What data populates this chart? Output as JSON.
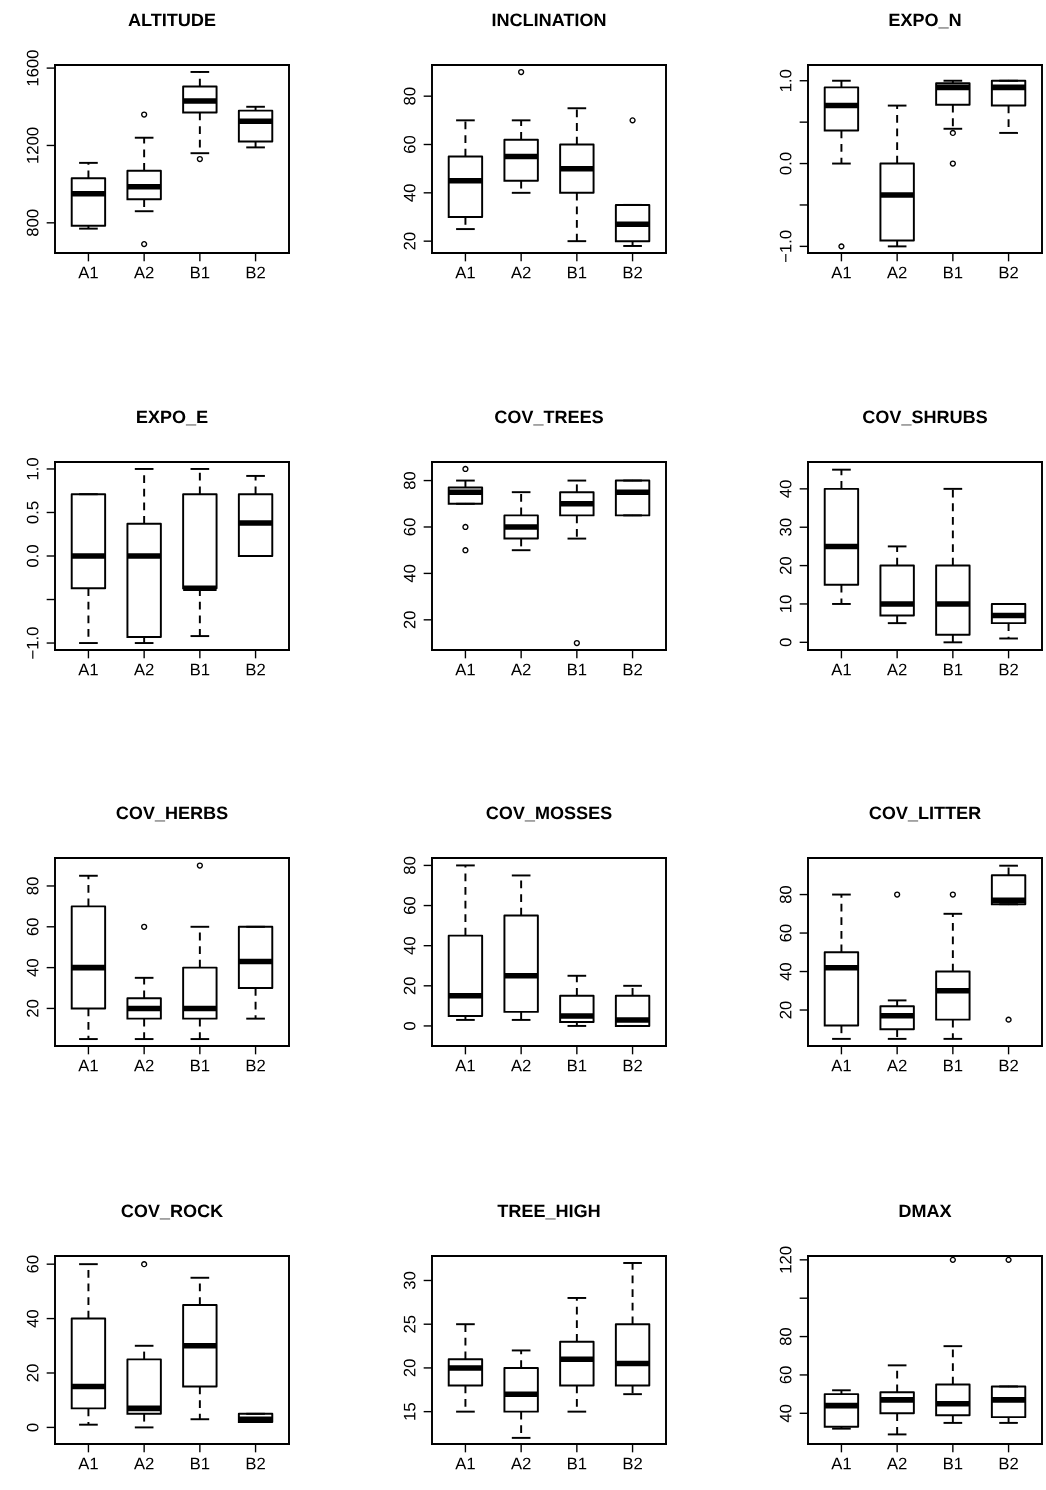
{
  "chart_data": [
    {
      "type": "box",
      "title": "ALTITUDE",
      "categories": [
        "A1",
        "A2",
        "B1",
        "B2"
      ],
      "ylim": [
        644,
        1616
      ],
      "yticks": [
        800,
        1200,
        1600
      ],
      "boxes": [
        {
          "low": 770,
          "q1": 785,
          "median": 950,
          "q3": 1030,
          "high": 1110
        },
        {
          "low": 860,
          "q1": 922,
          "median": 987,
          "q3": 1069,
          "high": 1240,
          "outliers": [
            1360,
            690
          ]
        },
        {
          "low": 1160,
          "q1": 1370,
          "median": 1430,
          "q3": 1505,
          "high": 1580,
          "outliers": [
            1130
          ]
        },
        {
          "low": 1190,
          "q1": 1220,
          "median": 1325,
          "q3": 1380,
          "high": 1400
        }
      ]
    },
    {
      "type": "box",
      "title": "INCLINATION",
      "categories": [
        "A1",
        "A2",
        "B1",
        "B2"
      ],
      "ylim": [
        15.1,
        92.9
      ],
      "yticks": [
        20,
        40,
        60,
        80
      ],
      "boxes": [
        {
          "low": 25,
          "q1": 30,
          "median": 45,
          "q3": 55,
          "high": 70
        },
        {
          "low": 40,
          "q1": 45,
          "median": 55,
          "q3": 62,
          "high": 70,
          "outliers": [
            90
          ]
        },
        {
          "low": 20,
          "q1": 40,
          "median": 50,
          "q3": 60,
          "high": 75
        },
        {
          "low": 18,
          "q1": 20,
          "median": 27,
          "q3": 35,
          "high": 35,
          "outliers": [
            70
          ]
        }
      ]
    },
    {
      "type": "box",
      "title": "EXPO_N",
      "categories": [
        "A1",
        "A2",
        "B1",
        "B2"
      ],
      "ylim": [
        -1.08,
        1.19
      ],
      "yticks": [
        {
          "value": -1.0,
          "label": "−1.0"
        },
        {
          "value": -0.5,
          "label": null
        },
        {
          "value": 0.0,
          "label": "0.0"
        },
        {
          "value": 0.5,
          "label": null
        },
        {
          "value": 1.0,
          "label": "1.0"
        }
      ],
      "boxes": [
        {
          "low": 0.0,
          "q1": 0.4,
          "median": 0.7,
          "q3": 0.92,
          "high": 1.0,
          "outliers": [
            -1.0
          ]
        },
        {
          "low": -1.0,
          "q1": -0.93,
          "median": -0.38,
          "q3": 0.0,
          "high": 0.7
        },
        {
          "low": 0.42,
          "q1": 0.71,
          "median": 0.92,
          "q3": 0.97,
          "high": 1.0,
          "outliers": [
            0.37,
            0.0
          ]
        },
        {
          "low": 0.37,
          "q1": 0.7,
          "median": 0.92,
          "q3": 1.0,
          "high": 1.0
        }
      ]
    },
    {
      "type": "box",
      "title": "EXPO_E",
      "categories": [
        "A1",
        "A2",
        "B1",
        "B2"
      ],
      "ylim": [
        -1.08,
        1.08
      ],
      "yticks": [
        {
          "value": -1.0,
          "label": "−1.0"
        },
        {
          "value": -0.5,
          "label": null
        },
        {
          "value": 0.0,
          "label": "0.0"
        },
        {
          "value": 0.5,
          "label": "0.5"
        },
        {
          "value": 1.0,
          "label": "1.0"
        }
      ],
      "boxes": [
        {
          "low": -1.0,
          "q1": -0.37,
          "median": 0.0,
          "q3": 0.71,
          "high": 0.71
        },
        {
          "low": -1.0,
          "q1": -0.93,
          "median": 0.0,
          "q3": 0.37,
          "high": 1.0
        },
        {
          "low": -0.92,
          "q1": -0.37,
          "median": -0.37,
          "q3": 0.71,
          "high": 1.0
        },
        {
          "low": 0.0,
          "q1": 0.0,
          "median": 0.38,
          "q3": 0.71,
          "high": 0.92
        }
      ]
    },
    {
      "type": "box",
      "title": "COV_TREES",
      "categories": [
        "A1",
        "A2",
        "B1",
        "B2"
      ],
      "ylim": [
        7,
        88
      ],
      "yticks": [
        20,
        40,
        60,
        80
      ],
      "boxes": [
        {
          "low": 70,
          "q1": 70,
          "median": 75,
          "q3": 77,
          "high": 80,
          "outliers": [
            85,
            60,
            50
          ]
        },
        {
          "low": 50,
          "q1": 55,
          "median": 60,
          "q3": 65,
          "high": 75
        },
        {
          "low": 55,
          "q1": 65,
          "median": 70,
          "q3": 75,
          "high": 80,
          "outliers": [
            10
          ]
        },
        {
          "low": 65,
          "q1": 65,
          "median": 75,
          "q3": 80,
          "high": 80
        }
      ]
    },
    {
      "type": "box",
      "title": "COV_SHRUBS",
      "categories": [
        "A1",
        "A2",
        "B1",
        "B2"
      ],
      "ylim": [
        -2,
        47
      ],
      "yticks": [
        0,
        10,
        20,
        30,
        40
      ],
      "boxes": [
        {
          "low": 10,
          "q1": 15,
          "median": 25,
          "q3": 40,
          "high": 45
        },
        {
          "low": 5,
          "q1": 7,
          "median": 10,
          "q3": 20,
          "high": 25
        },
        {
          "low": 0,
          "q1": 2,
          "median": 10,
          "q3": 20,
          "high": 40
        },
        {
          "low": 1,
          "q1": 5,
          "median": 7,
          "q3": 10,
          "high": 10
        }
      ]
    },
    {
      "type": "box",
      "title": "COV_HERBS",
      "categories": [
        "A1",
        "A2",
        "B1",
        "B2"
      ],
      "ylim": [
        1.6,
        93.7
      ],
      "yticks": [
        20,
        40,
        60,
        80
      ],
      "boxes": [
        {
          "low": 5,
          "q1": 20,
          "median": 40,
          "q3": 70,
          "high": 85
        },
        {
          "low": 5,
          "q1": 15,
          "median": 20,
          "q3": 25,
          "high": 35,
          "outliers": [
            60
          ]
        },
        {
          "low": 5,
          "q1": 15,
          "median": 20,
          "q3": 40,
          "high": 60,
          "outliers": [
            90
          ]
        },
        {
          "low": 15,
          "q1": 30,
          "median": 43,
          "q3": 60,
          "high": 60
        }
      ]
    },
    {
      "type": "box",
      "title": "COV_MOSSES",
      "categories": [
        "A1",
        "A2",
        "B1",
        "B2"
      ],
      "ylim": [
        -10,
        83.7
      ],
      "yticks": [
        0,
        20,
        40,
        60,
        80
      ],
      "boxes": [
        {
          "low": 3,
          "q1": 5,
          "median": 15,
          "q3": 45,
          "high": 80
        },
        {
          "low": 3,
          "q1": 7,
          "median": 25,
          "q3": 55,
          "high": 75
        },
        {
          "low": 0,
          "q1": 2,
          "median": 5,
          "q3": 15,
          "high": 25
        },
        {
          "low": 0,
          "q1": 0,
          "median": 3,
          "q3": 15,
          "high": 20
        }
      ]
    },
    {
      "type": "box",
      "title": "COV_LITTER",
      "categories": [
        "A1",
        "A2",
        "B1",
        "B2"
      ],
      "ylim": [
        1.3,
        99
      ],
      "yticks": [
        20,
        40,
        60,
        80
      ],
      "boxes": [
        {
          "low": 5,
          "q1": 12,
          "median": 42,
          "q3": 50,
          "high": 80
        },
        {
          "low": 5,
          "q1": 10,
          "median": 17,
          "q3": 22,
          "high": 25,
          "outliers": [
            80
          ]
        },
        {
          "low": 5,
          "q1": 15,
          "median": 30,
          "q3": 40,
          "high": 70,
          "outliers": [
            80
          ]
        },
        {
          "low": 75,
          "q1": 75,
          "median": 77,
          "q3": 90,
          "high": 95,
          "outliers": [
            15
          ]
        }
      ]
    },
    {
      "type": "box",
      "title": "COV_ROCK",
      "categories": [
        "A1",
        "A2",
        "B1",
        "B2"
      ],
      "ylim": [
        -6.1,
        63
      ],
      "yticks": [
        0,
        20,
        40,
        60
      ],
      "boxes": [
        {
          "low": 1,
          "q1": 7,
          "median": 15,
          "q3": 40,
          "high": 60
        },
        {
          "low": 0,
          "q1": 5,
          "median": 7,
          "q3": 25,
          "high": 30,
          "outliers": [
            60
          ]
        },
        {
          "low": 3,
          "q1": 15,
          "median": 30,
          "q3": 45,
          "high": 55
        },
        {
          "low": 2,
          "q1": 2,
          "median": 3,
          "q3": 5,
          "high": 5
        }
      ]
    },
    {
      "type": "box",
      "title": "TREE_HIGH",
      "categories": [
        "A1",
        "A2",
        "B1",
        "B2"
      ],
      "ylim": [
        11.3,
        32.8
      ],
      "yticks": [
        15,
        20,
        25,
        30
      ],
      "boxes": [
        {
          "low": 15,
          "q1": 18,
          "median": 20,
          "q3": 21,
          "high": 25
        },
        {
          "low": 12,
          "q1": 15,
          "median": 17,
          "q3": 20,
          "high": 22
        },
        {
          "low": 15,
          "q1": 18,
          "median": 21,
          "q3": 23,
          "high": 28
        },
        {
          "low": 17,
          "q1": 18,
          "median": 20.5,
          "q3": 25,
          "high": 32
        }
      ]
    },
    {
      "type": "box",
      "title": "DMAX",
      "categories": [
        "A1",
        "A2",
        "B1",
        "B2"
      ],
      "ylim": [
        24,
        122
      ],
      "yticks": [
        40,
        60,
        80,
        {
          "value": 100,
          "label": null
        },
        120
      ],
      "boxes": [
        {
          "low": 32,
          "q1": 33,
          "median": 44,
          "q3": 50,
          "high": 52
        },
        {
          "low": 29,
          "q1": 40,
          "median": 47,
          "q3": 51,
          "high": 65
        },
        {
          "low": 35,
          "q1": 39,
          "median": 45,
          "q3": 55,
          "high": 75,
          "outliers": [
            120
          ]
        },
        {
          "low": 35,
          "q1": 38,
          "median": 47,
          "q3": 54,
          "high": 54,
          "outliers": [
            120
          ]
        }
      ]
    }
  ]
}
